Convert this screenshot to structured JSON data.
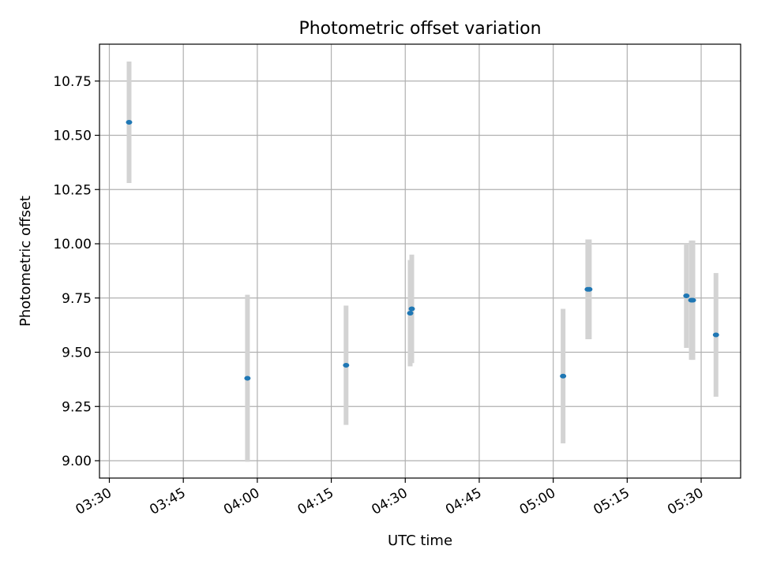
{
  "chart_data": {
    "type": "scatter",
    "title": "Photometric offset variation",
    "xlabel": "UTC time",
    "ylabel": "Photometric offset",
    "xlim": [
      "03:28",
      "05:38"
    ],
    "ylim": [
      8.92,
      10.92
    ],
    "grid": true,
    "x_ticks": [
      "03:30",
      "03:45",
      "04:00",
      "04:15",
      "04:30",
      "04:45",
      "05:00",
      "05:15",
      "05:30"
    ],
    "y_ticks": [
      "9.00",
      "9.25",
      "9.50",
      "9.75",
      "10.00",
      "10.25",
      "10.50",
      "10.75"
    ],
    "colors": {
      "point": "#1f77b4",
      "errorbar": "#d3d3d3",
      "grid": "#b0b0b0"
    },
    "points": [
      {
        "x": "03:34",
        "y": 10.56,
        "err": 0.28
      },
      {
        "x": "03:58",
        "y": 9.38,
        "err": 0.385
      },
      {
        "x": "04:18",
        "y": 9.44,
        "err": 0.275
      },
      {
        "x": "04:31",
        "y": 9.68,
        "err": 0.245
      },
      {
        "x": "04:31",
        "y": 9.7,
        "err": 0.25
      },
      {
        "x": "05:02",
        "y": 9.39,
        "err": 0.31
      },
      {
        "x": "05:07",
        "y": 9.79,
        "err": 0.23
      },
      {
        "x": "05:07",
        "y": 9.79,
        "err": 0.23
      },
      {
        "x": "05:27",
        "y": 9.76,
        "err": 0.24
      },
      {
        "x": "05:28",
        "y": 9.74,
        "err": 0.275
      },
      {
        "x": "05:28",
        "y": 9.74,
        "err": 0.275
      },
      {
        "x": "05:33",
        "y": 9.58,
        "err": 0.285
      }
    ]
  }
}
